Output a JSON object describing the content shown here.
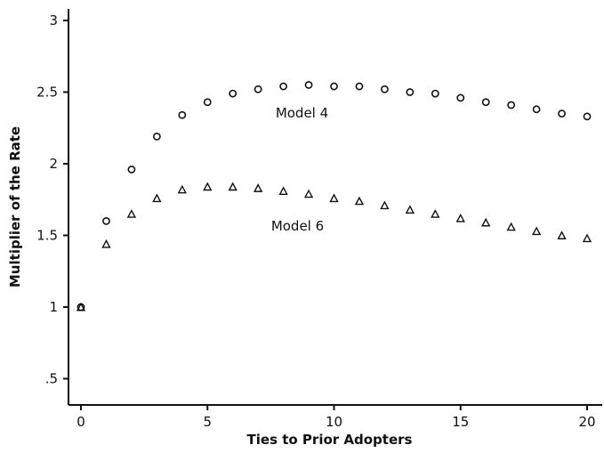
{
  "chart_data": {
    "type": "scatter",
    "xlabel": "Ties to Prior Adopters",
    "ylabel": "Multiplier of the Rate",
    "xlim": [
      -0.5,
      20.5
    ],
    "ylim": [
      0.38,
      3.1
    ],
    "x_ticks": [
      0,
      5,
      10,
      15,
      20
    ],
    "x_tick_labels": [
      "0",
      "5",
      "10",
      "15",
      "20"
    ],
    "y_ticks": [
      0.5,
      1,
      1.5,
      2,
      2.5,
      3
    ],
    "y_tick_labels": [
      ".5",
      "1",
      "1.5",
      "2",
      "2.5",
      "3"
    ],
    "grid": false,
    "series": [
      {
        "name": "Model 4",
        "marker": "circle",
        "x": [
          0,
          1,
          2,
          3,
          4,
          5,
          6,
          7,
          8,
          9,
          10,
          11,
          12,
          13,
          14,
          15,
          16,
          17,
          18,
          19,
          20
        ],
        "y": [
          1.0,
          1.6,
          1.96,
          2.19,
          2.34,
          2.43,
          2.49,
          2.52,
          2.54,
          2.55,
          2.54,
          2.54,
          2.52,
          2.5,
          2.49,
          2.46,
          2.43,
          2.41,
          2.38,
          2.35,
          2.33
        ]
      },
      {
        "name": "Model 6",
        "marker": "triangle",
        "x": [
          0,
          1,
          2,
          3,
          4,
          5,
          6,
          7,
          8,
          9,
          10,
          11,
          12,
          13,
          14,
          15,
          16,
          17,
          18,
          19,
          20
        ],
        "y": [
          1.0,
          1.44,
          1.65,
          1.76,
          1.82,
          1.84,
          1.84,
          1.83,
          1.81,
          1.79,
          1.76,
          1.74,
          1.71,
          1.68,
          1.65,
          1.62,
          1.59,
          1.56,
          1.53,
          1.5,
          1.48
        ]
      }
    ],
    "annotations": [
      {
        "text": "Model 4",
        "x": 10,
        "y": 2.36
      },
      {
        "text": "Model 6",
        "x": 10,
        "y": 1.57
      }
    ]
  }
}
